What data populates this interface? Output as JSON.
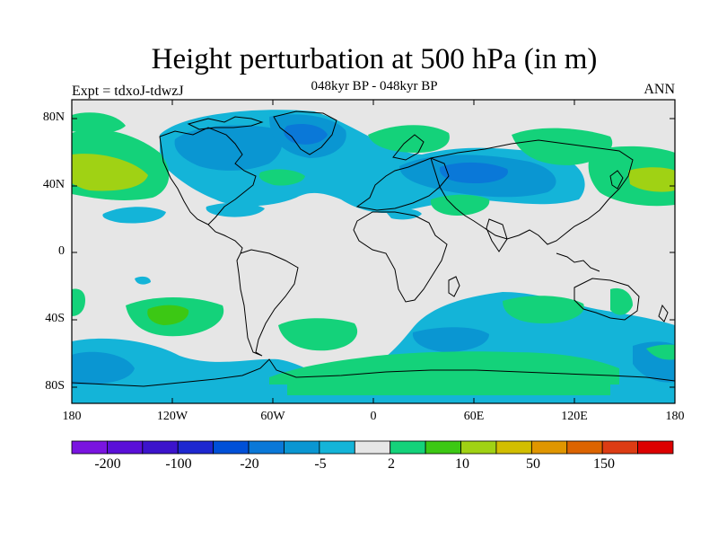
{
  "title": "Height perturbation at 500 hPa (in m)",
  "subtitle": "048kyr BP - 048kyr BP",
  "left_label": "Expt = tdxoJ-tdwzJ",
  "right_label": "ANN",
  "y_ticks": [
    "80N",
    "40N",
    "0",
    "40S",
    "80S"
  ],
  "x_ticks": [
    "180",
    "120W",
    "60W",
    "0",
    "60E",
    "120E",
    "180"
  ],
  "colorbar": {
    "colors": [
      "#7a14e0",
      "#5a10d8",
      "#3c14cc",
      "#1e28d0",
      "#0050d8",
      "#0a78d8",
      "#0a96d2",
      "#14b4d8",
      "#e6e6e6",
      "#14d27a",
      "#3cc814",
      "#a0d214",
      "#d2be00",
      "#e09600",
      "#dc6400",
      "#dc3c14",
      "#dc0000"
    ],
    "labels": [
      "-200",
      "-100",
      "-20",
      "-5",
      "2",
      "10",
      "50",
      "150"
    ]
  },
  "colors": {
    "background": "#e6e6e6",
    "light_blue": "#14b4d8",
    "mid_blue": "#0a96d2",
    "blue": "#0a78d8",
    "green": "#14d27a",
    "bright_green": "#3cc814",
    "yellow_green": "#a0d214",
    "coastline": "#000000"
  }
}
